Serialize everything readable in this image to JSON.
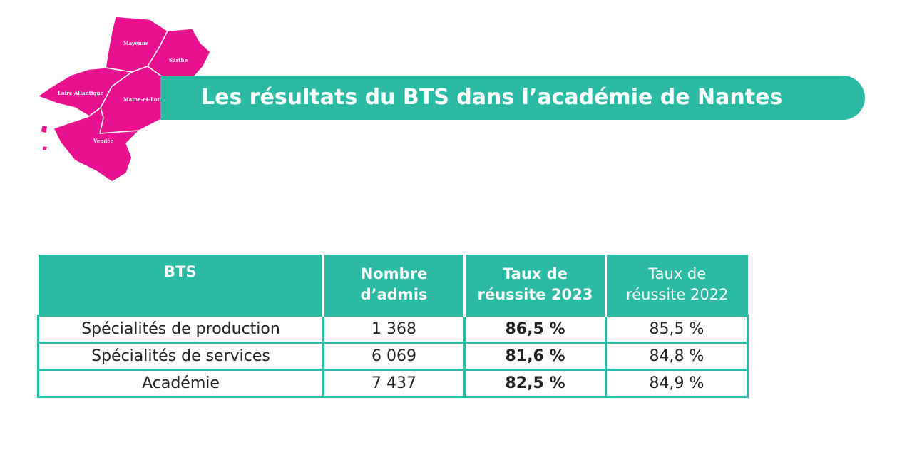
{
  "banner": {
    "title": "Les résultats du BTS dans l’académie de Nantes"
  },
  "map": {
    "departments": [
      "Mayenne",
      "Sarthe",
      "Loire Atlantique",
      "Maine-et-Loire",
      "Vendée"
    ],
    "color": "#e8118f"
  },
  "colors": {
    "accent": "#2bbba4",
    "map_fill": "#e8118f",
    "text": "#222222"
  },
  "table": {
    "headers": [
      {
        "line1": "BTS",
        "line2": ""
      },
      {
        "line1": "Nombre",
        "line2": "d’admis"
      },
      {
        "line1": "Taux de",
        "line2": "réussite 2023"
      },
      {
        "line1": "Taux de",
        "line2": "réussite 2022"
      }
    ],
    "rows": [
      {
        "label": "Spécialités de production",
        "admis": "1 368",
        "taux2023": "86,5 %",
        "taux2022": "85,5 %"
      },
      {
        "label": "Spécialités de services",
        "admis": "6 069",
        "taux2023": "81,6 %",
        "taux2022": "84,8 %"
      },
      {
        "label": "Académie",
        "admis": "7 437",
        "taux2023": "82,5 %",
        "taux2022": "84,9 %"
      }
    ]
  }
}
